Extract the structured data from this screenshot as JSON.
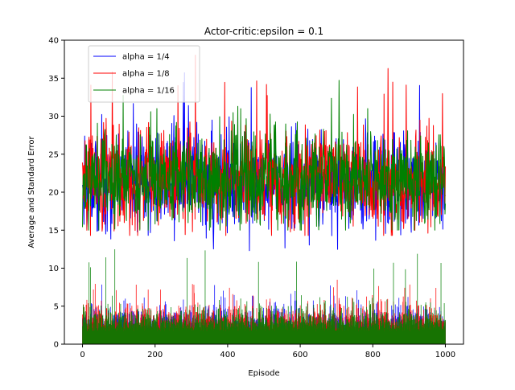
{
  "chart_data": {
    "type": "line",
    "title": "Actor-critic:epsilon = 0.1",
    "xlabel": "Episode",
    "ylabel": "Average and Standard Error",
    "xlim": [
      -50,
      1050
    ],
    "ylim": [
      0,
      40
    ],
    "xticks": [
      0,
      200,
      400,
      600,
      800,
      1000
    ],
    "yticks": [
      0,
      5,
      10,
      15,
      20,
      25,
      30,
      35,
      40
    ],
    "xtick_labels": [
      "0",
      "200",
      "400",
      "600",
      "800",
      "1000"
    ],
    "ytick_labels": [
      "0",
      "5",
      "10",
      "15",
      "20",
      "25",
      "30",
      "35",
      "40"
    ],
    "legend_position": "top-left",
    "grid": false,
    "n_episodes": 1001,
    "series": [
      {
        "name": "alpha = 1/4",
        "label": "alpha = 1/4",
        "color": "#0000ff",
        "avg_mean": 21.5,
        "avg_spread": 3.2,
        "avg_min": 12.3,
        "avg_max": 36.0,
        "stderr_mean": 2.3,
        "stderr_max": 7.9
      },
      {
        "name": "alpha = 1/8",
        "label": "alpha = 1/8",
        "color": "#ff0000",
        "avg_mean": 21.6,
        "avg_spread": 3.3,
        "avg_min": 14.3,
        "avg_max": 38.3,
        "stderr_mean": 2.4,
        "stderr_max": 8.6
      },
      {
        "name": "alpha = 1/16",
        "label": "alpha = 1/16",
        "color": "#008000",
        "avg_mean": 21.8,
        "avg_spread": 3.1,
        "avg_min": 15.0,
        "avg_max": 35.0,
        "stderr_mean": 2.3,
        "stderr_max": 12.7
      }
    ]
  }
}
